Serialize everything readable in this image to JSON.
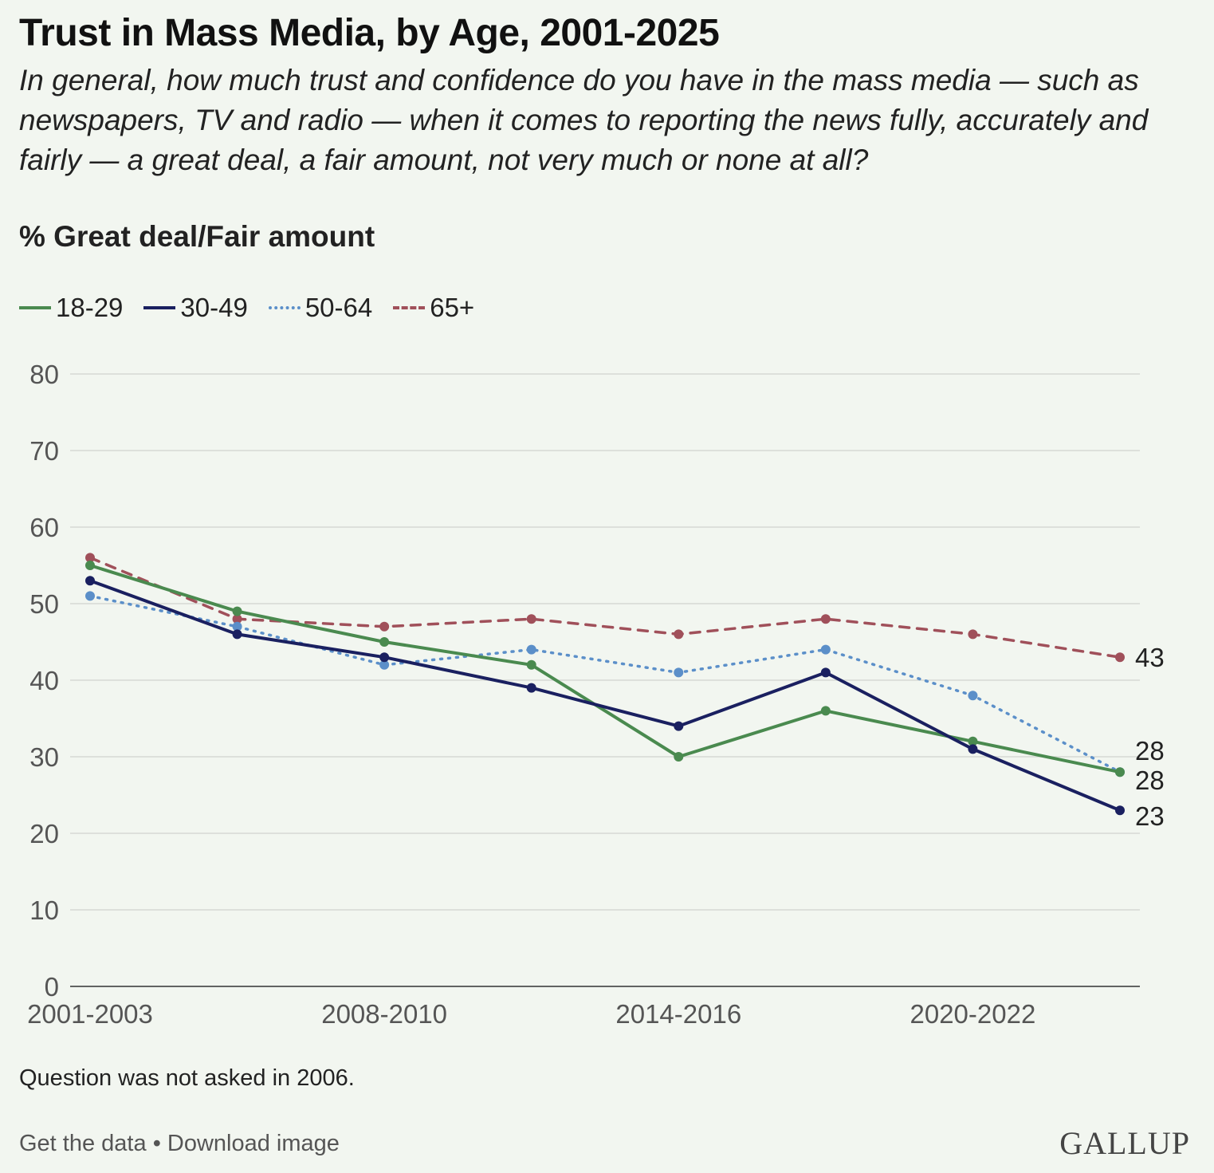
{
  "header": {
    "title": "Trust in Mass Media, by Age, 2001-2025",
    "subtitle": "In general, how much trust and confidence do you have in the mass media — such as newspapers, TV and radio — when it comes to reporting the news fully, accurately and fairly — a great deal, a fair amount, not very much or none at all?",
    "measure_label": "% Great deal/Fair amount"
  },
  "footer": {
    "note": "Question was not asked in 2006.",
    "get_data_label": "Get the data",
    "separator": "•",
    "download_label": "Download image",
    "brand": "GALLUP"
  },
  "chart_data": {
    "type": "line",
    "title": "Trust in Mass Media, by Age, 2001-2025",
    "ylabel": "% Great deal/Fair amount",
    "xlabel": "",
    "ylim": [
      0,
      80
    ],
    "yticks": [
      0,
      10,
      20,
      30,
      40,
      50,
      60,
      70,
      80
    ],
    "grid": true,
    "legend_position": "top-left",
    "x_tick_labels": [
      "2001-2003",
      "2008-2010",
      "2014-2016",
      "2020-2022"
    ],
    "x_tick_indices": [
      0,
      2,
      4,
      6
    ],
    "point_count": 8,
    "series": [
      {
        "name": "18-29",
        "color": "#4a8a4f",
        "style": "solid",
        "values": [
          55,
          49,
          45,
          42,
          30,
          36,
          32,
          28
        ],
        "end_label": "28"
      },
      {
        "name": "30-49",
        "color": "#1a2060",
        "style": "solid",
        "values": [
          53,
          46,
          43,
          39,
          34,
          41,
          31,
          23
        ],
        "end_label": "23"
      },
      {
        "name": "50-64",
        "color": "#5b8fc9",
        "style": "dotted",
        "values": [
          51,
          47,
          42,
          44,
          41,
          44,
          38,
          28
        ],
        "end_label": "28"
      },
      {
        "name": "65+",
        "color": "#a0505a",
        "style": "dashed",
        "values": [
          56,
          48,
          47,
          48,
          46,
          48,
          46,
          43
        ],
        "end_label": "43"
      }
    ]
  }
}
